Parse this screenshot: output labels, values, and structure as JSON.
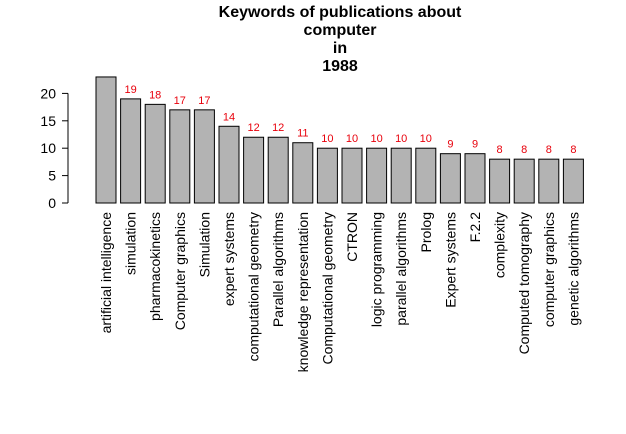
{
  "chart_data": {
    "type": "bar",
    "title_lines": [
      "Keywords of publications about",
      "computer",
      "in",
      "1988"
    ],
    "categories": [
      "artificial intelligence",
      "simulation",
      "pharmacokinetics",
      "Computer graphics",
      "Simulation",
      "expert systems",
      "computational geometry",
      "Parallel algorithms",
      "knowledge representation",
      "Computational geometry",
      "CTRON",
      "logic programming",
      "parallel algorithms",
      "Prolog",
      "Expert systems",
      "F.2.2",
      "complexity",
      "Computed tomography",
      "computer graphics",
      "genetic algorithms"
    ],
    "values": [
      23,
      19,
      18,
      17,
      17,
      14,
      12,
      12,
      11,
      10,
      10,
      10,
      10,
      10,
      9,
      9,
      8,
      8,
      8,
      8
    ],
    "value_labels": [
      "",
      "19",
      "18",
      "17",
      "17",
      "14",
      "12",
      "12",
      "11",
      "10",
      "10",
      "10",
      "10",
      "10",
      "9",
      "9",
      "8",
      "8",
      "8",
      "8"
    ],
    "yticks": [
      0,
      5,
      10,
      15,
      20
    ],
    "ylim": [
      0,
      23
    ],
    "xlabel": "",
    "ylabel": "",
    "bar_color": "#b3b3b3",
    "label_color": "#e8000b",
    "grid": false
  }
}
